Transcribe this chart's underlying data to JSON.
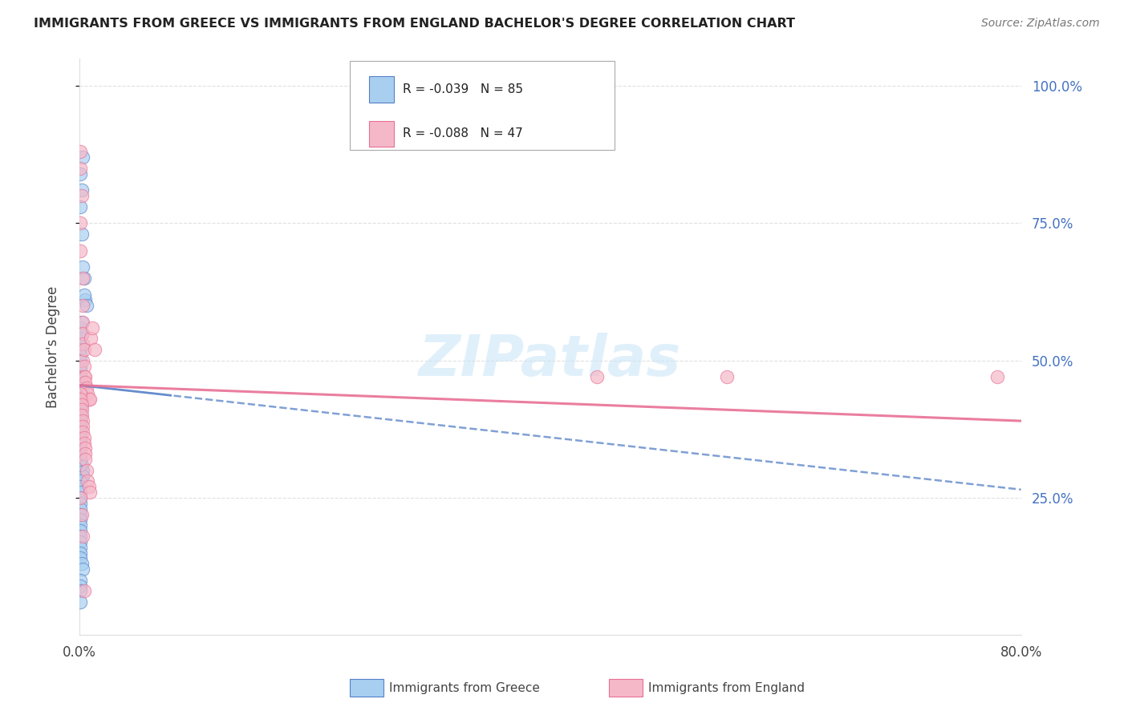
{
  "title": "IMMIGRANTS FROM GREECE VS IMMIGRANTS FROM ENGLAND BACHELOR'S DEGREE CORRELATION CHART",
  "source": "Source: ZipAtlas.com",
  "ylabel": "Bachelor's Degree",
  "xlim": [
    0.0,
    0.8
  ],
  "ylim": [
    0.0,
    1.05
  ],
  "legend_r_greece": "-0.039",
  "legend_n_greece": "85",
  "legend_r_england": "-0.088",
  "legend_n_england": "47",
  "greece_color": "#A8CFF0",
  "england_color": "#F5B8C8",
  "trendline_greece_color": "#5580C8",
  "trendline_england_color": "#E87095",
  "watermark_text": "ZIPatlas",
  "background_color": "#FFFFFF",
  "grid_color": "#CCCCCC",
  "greece_x": [
    0.001,
    0.002,
    0.003,
    0.001,
    0.002,
    0.004,
    0.005,
    0.003,
    0.004,
    0.006,
    0.001,
    0.001,
    0.002,
    0.001,
    0.001,
    0.002,
    0.001,
    0.001,
    0.001,
    0.001,
    0.001,
    0.001,
    0.001,
    0.001,
    0.001,
    0.002,
    0.002,
    0.001,
    0.001,
    0.001,
    0.001,
    0.001,
    0.002,
    0.002,
    0.001,
    0.001,
    0.001,
    0.001,
    0.001,
    0.001,
    0.001,
    0.001,
    0.001,
    0.001,
    0.001,
    0.001,
    0.001,
    0.001,
    0.001,
    0.001,
    0.001,
    0.001,
    0.001,
    0.001,
    0.001,
    0.002,
    0.002,
    0.002,
    0.003,
    0.003,
    0.001,
    0.001,
    0.001,
    0.001,
    0.001,
    0.001,
    0.001,
    0.001,
    0.001,
    0.001,
    0.001,
    0.001,
    0.001,
    0.001,
    0.001,
    0.002,
    0.003,
    0.001,
    0.001,
    0.001,
    0.001,
    0.001,
    0.001,
    0.001,
    0.001
  ],
  "greece_y": [
    0.84,
    0.81,
    0.87,
    0.78,
    0.73,
    0.65,
    0.61,
    0.67,
    0.62,
    0.6,
    0.56,
    0.54,
    0.57,
    0.53,
    0.52,
    0.55,
    0.51,
    0.5,
    0.49,
    0.48,
    0.47,
    0.47,
    0.46,
    0.46,
    0.45,
    0.46,
    0.45,
    0.44,
    0.43,
    0.44,
    0.43,
    0.42,
    0.43,
    0.43,
    0.42,
    0.41,
    0.41,
    0.4,
    0.4,
    0.39,
    0.39,
    0.4,
    0.39,
    0.38,
    0.38,
    0.37,
    0.37,
    0.36,
    0.36,
    0.35,
    0.35,
    0.34,
    0.33,
    0.33,
    0.32,
    0.31,
    0.3,
    0.29,
    0.3,
    0.29,
    0.28,
    0.27,
    0.26,
    0.25,
    0.24,
    0.23,
    0.22,
    0.21,
    0.2,
    0.19,
    0.18,
    0.17,
    0.16,
    0.15,
    0.14,
    0.13,
    0.12,
    0.1,
    0.09,
    0.08,
    0.06,
    0.31,
    0.32,
    0.33,
    0.34
  ],
  "england_x": [
    0.001,
    0.001,
    0.002,
    0.001,
    0.001,
    0.003,
    0.003,
    0.003,
    0.003,
    0.003,
    0.003,
    0.004,
    0.004,
    0.004,
    0.005,
    0.005,
    0.006,
    0.007,
    0.008,
    0.009,
    0.01,
    0.011,
    0.013,
    0.001,
    0.001,
    0.002,
    0.002,
    0.002,
    0.003,
    0.003,
    0.003,
    0.004,
    0.004,
    0.005,
    0.005,
    0.005,
    0.006,
    0.007,
    0.008,
    0.009,
    0.44,
    0.55,
    0.78,
    0.001,
    0.002,
    0.003,
    0.004
  ],
  "england_y": [
    0.88,
    0.85,
    0.8,
    0.75,
    0.7,
    0.65,
    0.6,
    0.57,
    0.55,
    0.53,
    0.5,
    0.52,
    0.49,
    0.47,
    0.47,
    0.46,
    0.45,
    0.44,
    0.43,
    0.43,
    0.54,
    0.56,
    0.52,
    0.44,
    0.43,
    0.42,
    0.41,
    0.4,
    0.39,
    0.38,
    0.37,
    0.36,
    0.35,
    0.34,
    0.33,
    0.32,
    0.3,
    0.28,
    0.27,
    0.26,
    0.47,
    0.47,
    0.47,
    0.25,
    0.22,
    0.18,
    0.08
  ],
  "g_trend_start": 0.455,
  "g_trend_end": 0.265,
  "e_trend_start": 0.455,
  "e_trend_end": 0.39
}
